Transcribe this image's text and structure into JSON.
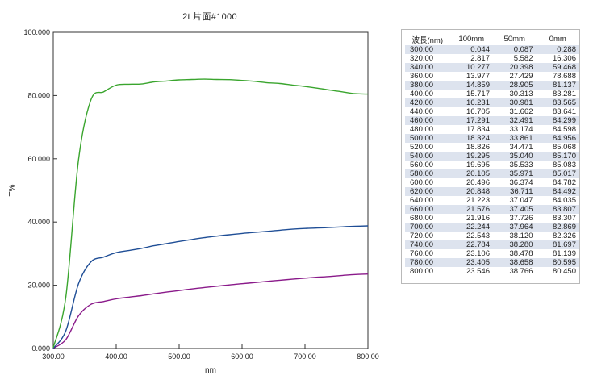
{
  "chart_data": {
    "type": "line",
    "title": "2t 片面#1000",
    "xlabel": "nm",
    "ylabel": "T%",
    "xlim": [
      300,
      800
    ],
    "ylim": [
      0,
      100
    ],
    "x_ticks": [
      "300.00",
      "400.00",
      "500.00",
      "600.00",
      "700.00",
      "800.00"
    ],
    "y_ticks": [
      "0.000",
      "20.000",
      "40.000",
      "60.000",
      "80.000",
      "100.000"
    ],
    "grid": false,
    "x": [
      300,
      320,
      340,
      360,
      380,
      400,
      420,
      440,
      460,
      480,
      500,
      520,
      540,
      560,
      580,
      600,
      620,
      640,
      660,
      680,
      700,
      720,
      740,
      760,
      780,
      800
    ],
    "series": [
      {
        "name": "100mm",
        "color": "#8a1a8a",
        "values": [
          0.044,
          2.817,
          10.277,
          13.977,
          14.859,
          15.717,
          16.231,
          16.705,
          17.291,
          17.834,
          18.324,
          18.826,
          19.295,
          19.695,
          20.105,
          20.496,
          20.848,
          21.223,
          21.576,
          21.916,
          22.244,
          22.543,
          22.784,
          23.106,
          23.405,
          23.546
        ]
      },
      {
        "name": "50mm",
        "color": "#1f4e96",
        "values": [
          0.087,
          5.582,
          20.398,
          27.429,
          28.905,
          30.313,
          30.981,
          31.662,
          32.491,
          33.174,
          33.861,
          34.471,
          35.04,
          35.533,
          35.971,
          36.374,
          36.711,
          37.047,
          37.405,
          37.726,
          37.964,
          38.12,
          38.28,
          38.478,
          38.658,
          38.766
        ]
      },
      {
        "name": "0mm",
        "color": "#3aa52e",
        "values": [
          0.288,
          16.306,
          59.468,
          78.688,
          81.137,
          83.281,
          83.565,
          83.641,
          84.299,
          84.598,
          84.956,
          85.068,
          85.17,
          85.083,
          85.017,
          84.782,
          84.492,
          84.035,
          83.807,
          83.307,
          82.869,
          82.326,
          81.697,
          81.139,
          80.595,
          80.45
        ]
      }
    ]
  },
  "table": {
    "headers": [
      "波長(nm)",
      "100mm",
      "50mm",
      "0mm"
    ],
    "rows": [
      [
        "300.00",
        "0.044",
        "0.087",
        "0.288"
      ],
      [
        "320.00",
        "2.817",
        "5.582",
        "16.306"
      ],
      [
        "340.00",
        "10.277",
        "20.398",
        "59.468"
      ],
      [
        "360.00",
        "13.977",
        "27.429",
        "78.688"
      ],
      [
        "380.00",
        "14.859",
        "28.905",
        "81.137"
      ],
      [
        "400.00",
        "15.717",
        "30.313",
        "83.281"
      ],
      [
        "420.00",
        "16.231",
        "30.981",
        "83.565"
      ],
      [
        "440.00",
        "16.705",
        "31.662",
        "83.641"
      ],
      [
        "460.00",
        "17.291",
        "32.491",
        "84.299"
      ],
      [
        "480.00",
        "17.834",
        "33.174",
        "84.598"
      ],
      [
        "500.00",
        "18.324",
        "33.861",
        "84.956"
      ],
      [
        "520.00",
        "18.826",
        "34.471",
        "85.068"
      ],
      [
        "540.00",
        "19.295",
        "35.040",
        "85.170"
      ],
      [
        "560.00",
        "19.695",
        "35.533",
        "85.083"
      ],
      [
        "580.00",
        "20.105",
        "35.971",
        "85.017"
      ],
      [
        "600.00",
        "20.496",
        "36.374",
        "84.782"
      ],
      [
        "620.00",
        "20.848",
        "36.711",
        "84.492"
      ],
      [
        "640.00",
        "21.223",
        "37.047",
        "84.035"
      ],
      [
        "660.00",
        "21.576",
        "37.405",
        "83.807"
      ],
      [
        "680.00",
        "21.916",
        "37.726",
        "83.307"
      ],
      [
        "700.00",
        "22.244",
        "37.964",
        "82.869"
      ],
      [
        "720.00",
        "22.543",
        "38.120",
        "82.326"
      ],
      [
        "740.00",
        "22.784",
        "38.280",
        "81.697"
      ],
      [
        "760.00",
        "23.106",
        "38.478",
        "81.139"
      ],
      [
        "780.00",
        "23.405",
        "38.658",
        "80.595"
      ],
      [
        "800.00",
        "23.546",
        "38.766",
        "80.450"
      ]
    ]
  }
}
